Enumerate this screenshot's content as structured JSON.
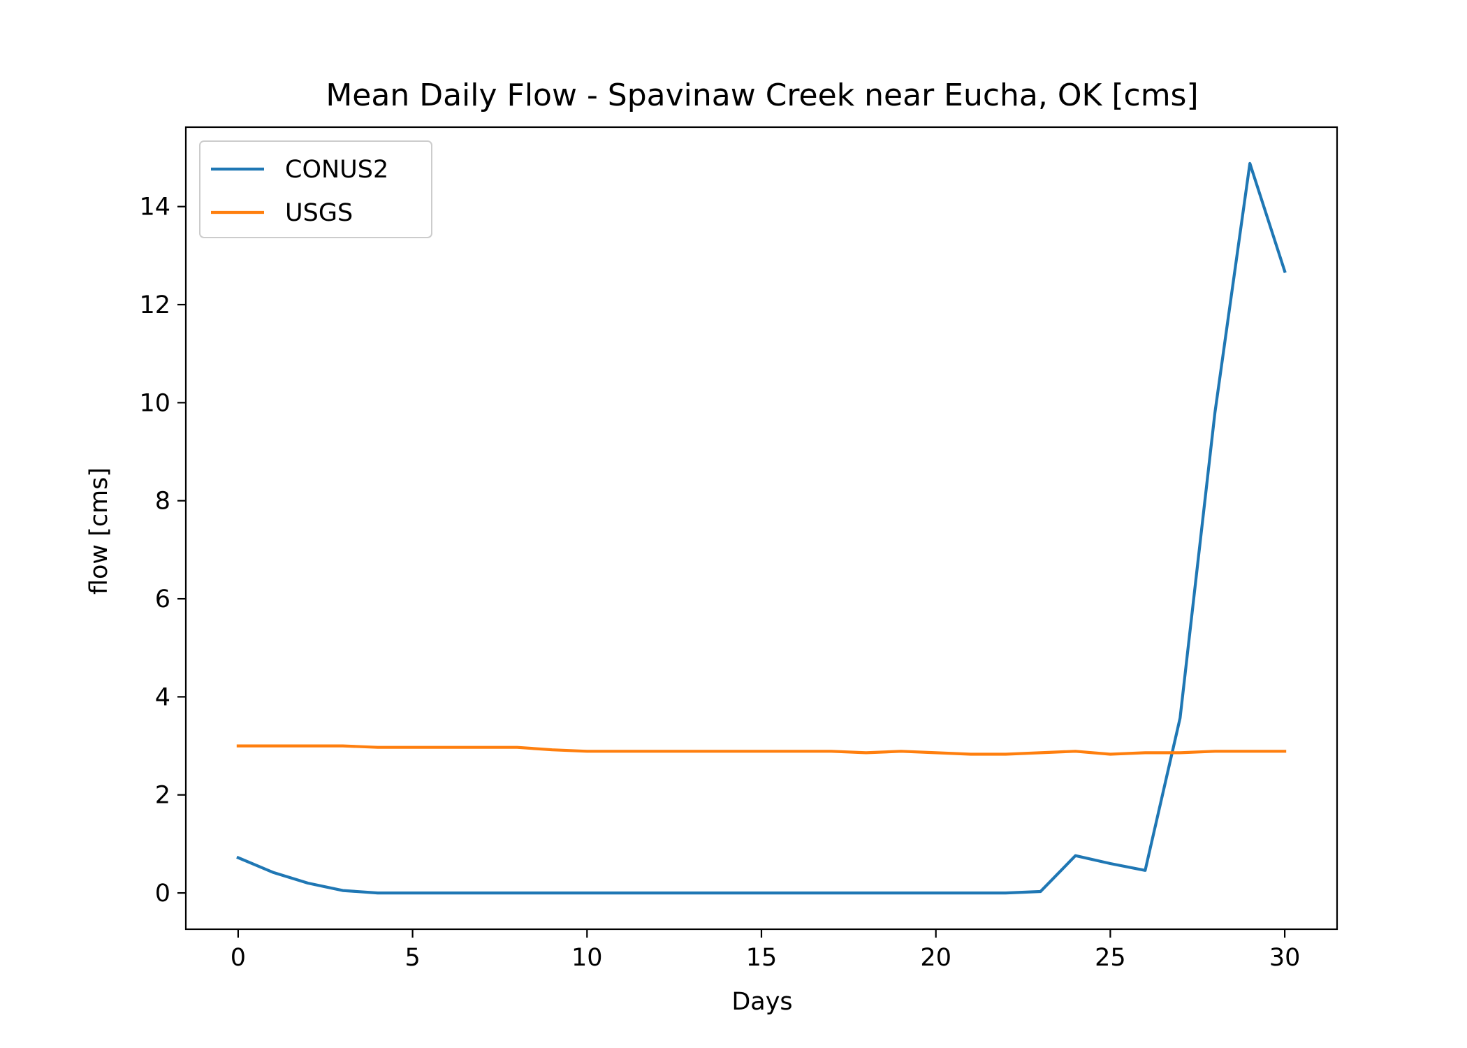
{
  "chart_data": {
    "type": "line",
    "title": "Mean Daily Flow - Spavinaw Creek near Eucha, OK [cms]",
    "xlabel": "Days",
    "ylabel": "flow [cms]",
    "xlim": [
      -1.5,
      31.5
    ],
    "ylim": [
      -0.74,
      15.62
    ],
    "xticks": [
      0,
      5,
      10,
      15,
      20,
      25,
      30
    ],
    "xtick_labels": [
      "0",
      "5",
      "10",
      "15",
      "20",
      "25",
      "30"
    ],
    "yticks": [
      0,
      2,
      4,
      6,
      8,
      10,
      12,
      14
    ],
    "ytick_labels": [
      "0",
      "2",
      "4",
      "6",
      "8",
      "10",
      "12",
      "14"
    ],
    "grid": false,
    "legend_position": "upper left",
    "x": [
      0,
      1,
      2,
      3,
      4,
      5,
      6,
      7,
      8,
      9,
      10,
      11,
      12,
      13,
      14,
      15,
      16,
      17,
      18,
      19,
      20,
      21,
      22,
      23,
      24,
      25,
      26,
      27,
      28,
      29,
      30
    ],
    "series": [
      {
        "name": "CONUS2",
        "color": "#1f77b4",
        "values": [
          0.72,
          0.42,
          0.2,
          0.05,
          0.0,
          0.0,
          0.0,
          0.0,
          0.0,
          0.0,
          0.0,
          0.0,
          0.0,
          0.0,
          0.0,
          0.0,
          0.0,
          0.0,
          0.0,
          0.0,
          0.0,
          0.0,
          0.0,
          0.03,
          0.76,
          0.6,
          0.46,
          3.57,
          9.8,
          14.88,
          12.68
        ]
      },
      {
        "name": "USGS",
        "color": "#ff7f0e",
        "values": [
          3.0,
          3.0,
          3.0,
          3.0,
          2.97,
          2.97,
          2.97,
          2.97,
          2.97,
          2.92,
          2.89,
          2.89,
          2.89,
          2.89,
          2.89,
          2.89,
          2.89,
          2.89,
          2.86,
          2.89,
          2.86,
          2.83,
          2.83,
          2.86,
          2.89,
          2.83,
          2.86,
          2.86,
          2.89,
          2.89,
          2.89
        ]
      }
    ]
  }
}
